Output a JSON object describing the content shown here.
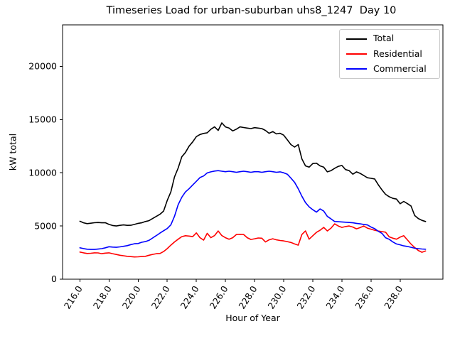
{
  "chart_data": {
    "type": "line",
    "title": "Timeseries Load for urban-suburban uhs8_1247  Day 10",
    "xlabel": "Hour of Year",
    "ylabel": "kW total",
    "xlim": [
      214.81,
      240.94
    ],
    "ylim": [
      0,
      23900
    ],
    "grid": false,
    "legend_position": "upper-right",
    "xticks": [
      216,
      218,
      220,
      222,
      224,
      226,
      228,
      230,
      232,
      234,
      236,
      238
    ],
    "xtick_labels": [
      "216.0",
      "218.0",
      "220.0",
      "222.0",
      "224.0",
      "226.0",
      "228.0",
      "230.0",
      "232.0",
      "234.0",
      "236.0",
      "238.0"
    ],
    "yticks": [
      0,
      5000,
      10000,
      15000,
      20000
    ],
    "ytick_labels": [
      "0",
      "5000",
      "10000",
      "15000",
      "20000"
    ],
    "x_start": 216.0,
    "x_step": 0.25,
    "series": [
      {
        "name": "Total",
        "color": "#000000",
        "values": [
          5450,
          5300,
          5220,
          5260,
          5310,
          5330,
          5300,
          5310,
          5150,
          5050,
          5000,
          5060,
          5100,
          5060,
          5070,
          5150,
          5250,
          5300,
          5420,
          5500,
          5700,
          5900,
          6100,
          6400,
          7400,
          8200,
          9600,
          10450,
          11500,
          11900,
          12500,
          12900,
          13400,
          13600,
          13700,
          13760,
          14090,
          14310,
          13980,
          14690,
          14310,
          14200,
          13930,
          14100,
          14310,
          14250,
          14200,
          14150,
          14240,
          14200,
          14150,
          13980,
          13710,
          13870,
          13650,
          13710,
          13540,
          13100,
          12650,
          12420,
          12650,
          11310,
          10650,
          10530,
          10870,
          10900,
          10650,
          10530,
          10090,
          10200,
          10420,
          10600,
          10690,
          10300,
          10200,
          9870,
          10090,
          9950,
          9750,
          9530,
          9480,
          9420,
          8870,
          8400,
          7980,
          7750,
          7600,
          7530,
          7090,
          7310,
          7100,
          6870,
          5980,
          5700,
          5530,
          5420
        ]
      },
      {
        "name": "Residential",
        "color": "#ff0000",
        "values": [
          2550,
          2480,
          2420,
          2440,
          2480,
          2470,
          2400,
          2450,
          2480,
          2400,
          2320,
          2250,
          2200,
          2150,
          2120,
          2090,
          2100,
          2130,
          2150,
          2250,
          2330,
          2400,
          2420,
          2600,
          2870,
          3200,
          3500,
          3760,
          4000,
          4089,
          4050,
          4000,
          4350,
          3900,
          3670,
          4310,
          3900,
          4100,
          4530,
          4100,
          3900,
          3760,
          3900,
          4200,
          4220,
          4200,
          3900,
          3730,
          3800,
          3870,
          3850,
          3500,
          3700,
          3800,
          3700,
          3640,
          3600,
          3530,
          3450,
          3310,
          3200,
          4200,
          4530,
          3760,
          4089,
          4400,
          4600,
          4870,
          4530,
          4800,
          5200,
          5000,
          4870,
          4950,
          5000,
          4900,
          4730,
          4850,
          5000,
          4800,
          4700,
          4600,
          4530,
          4470,
          4420,
          3980,
          3850,
          3760,
          3950,
          4089,
          3700,
          3300,
          2980,
          2700,
          2533,
          2650
        ]
      },
      {
        "name": "Commercial",
        "color": "#0000ff",
        "values": [
          2950,
          2880,
          2820,
          2800,
          2800,
          2830,
          2870,
          2950,
          3050,
          3020,
          3000,
          3040,
          3090,
          3150,
          3250,
          3330,
          3350,
          3470,
          3530,
          3650,
          3870,
          4100,
          4330,
          4550,
          4760,
          5100,
          5900,
          7000,
          7700,
          8200,
          8500,
          8850,
          9200,
          9550,
          9700,
          9990,
          10090,
          10160,
          10200,
          10150,
          10100,
          10150,
          10100,
          10050,
          10100,
          10150,
          10100,
          10050,
          10100,
          10100,
          10050,
          10100,
          10150,
          10100,
          10050,
          10090,
          10000,
          9870,
          9500,
          9100,
          8500,
          7800,
          7200,
          6800,
          6530,
          6300,
          6600,
          6400,
          5900,
          5670,
          5420,
          5400,
          5380,
          5353,
          5330,
          5300,
          5250,
          5200,
          5150,
          5100,
          4900,
          4753,
          4500,
          4313,
          3900,
          3753,
          3500,
          3313,
          3230,
          3133,
          3080,
          3000,
          2913,
          2870,
          2840,
          2820
        ]
      }
    ]
  }
}
